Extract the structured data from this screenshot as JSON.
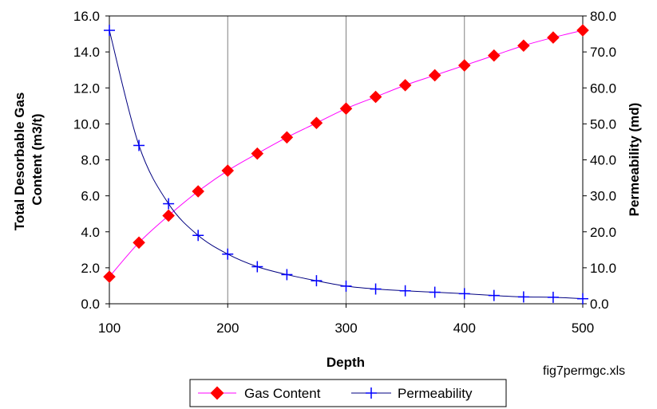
{
  "chart_data": {
    "type": "line",
    "title": "",
    "xlabel": "Depth",
    "ylabel_left": "Total Desorbable Gas Content (m3/t)",
    "ylabel_left_lines": [
      "Total Desorbable Gas",
      "Content (m3/t)"
    ],
    "ylabel_right": "Permeability (md)",
    "note": "fig7permgc.xls",
    "xlim": [
      100,
      500
    ],
    "ylim_left": [
      0,
      16
    ],
    "ylim_right": [
      0,
      80
    ],
    "x_ticks": [
      "100",
      "200",
      "300",
      "400",
      "500"
    ],
    "y_left_ticks": [
      "0.0",
      "2.0",
      "4.0",
      "6.0",
      "8.0",
      "10.0",
      "12.0",
      "14.0",
      "16.0"
    ],
    "y_right_ticks": [
      "0.0",
      "10.0",
      "20.0",
      "30.0",
      "40.0",
      "50.0",
      "60.0",
      "70.0",
      "80.0"
    ],
    "grid": {
      "vertical": true,
      "horizontal": false
    },
    "legend_position": "bottom-center",
    "x": [
      100,
      125,
      150,
      175,
      200,
      225,
      250,
      275,
      300,
      325,
      350,
      375,
      400,
      425,
      450,
      475,
      500
    ],
    "series": [
      {
        "name": "Gas Content",
        "axis": "left",
        "color": "#ff00ff",
        "marker_color": "#ff0000",
        "marker": "diamond",
        "values": [
          1.5,
          3.4,
          4.9,
          6.25,
          7.4,
          8.35,
          9.25,
          10.05,
          10.85,
          11.5,
          12.15,
          12.7,
          13.25,
          13.8,
          14.35,
          14.8,
          15.2
        ]
      },
      {
        "name": "Permeability",
        "axis": "right",
        "color": "#000080",
        "marker_color": "#0000ff",
        "marker": "plus",
        "values": [
          76.0,
          44.0,
          27.8,
          19.0,
          13.8,
          10.3,
          8.1,
          6.4,
          4.9,
          4.1,
          3.6,
          3.2,
          2.8,
          2.3,
          1.9,
          1.8,
          1.4
        ]
      }
    ]
  }
}
